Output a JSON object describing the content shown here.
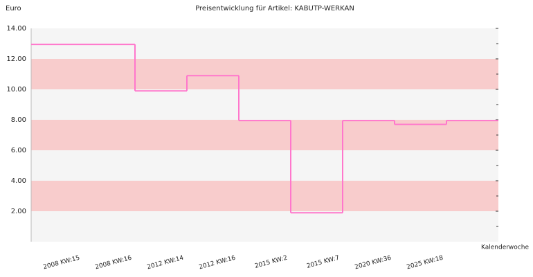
{
  "chart_data": {
    "type": "step",
    "title": "Preisentwicklung für Artikel: KABUTP-WERKAN",
    "y_label": "Euro",
    "x_label": "Kalenderwoche",
    "categories": [
      "2008 KW:15",
      "2008 KW:16",
      "2012 KW:14",
      "2012 KW:16",
      "2015 KW:2",
      "2015 KW:7",
      "2020 KW:36",
      "2025 KW:18"
    ],
    "values": [
      12.95,
      9.9,
      10.9,
      7.95,
      1.9,
      7.95,
      7.7,
      7.95
    ],
    "color": "#ff77cc",
    "ylim": [
      0,
      14
    ],
    "yticks": [
      {
        "value": 2,
        "label": "2.00"
      },
      {
        "value": 4,
        "label": "4.00"
      },
      {
        "value": 6,
        "label": "6.00"
      },
      {
        "value": 8,
        "label": "8.00"
      },
      {
        "value": 10,
        "label": "10.00"
      },
      {
        "value": 12,
        "label": "12.00"
      },
      {
        "value": 14,
        "label": "14.00"
      }
    ],
    "band_colors": [
      "#f5f5f5",
      "#f8cccc"
    ]
  }
}
